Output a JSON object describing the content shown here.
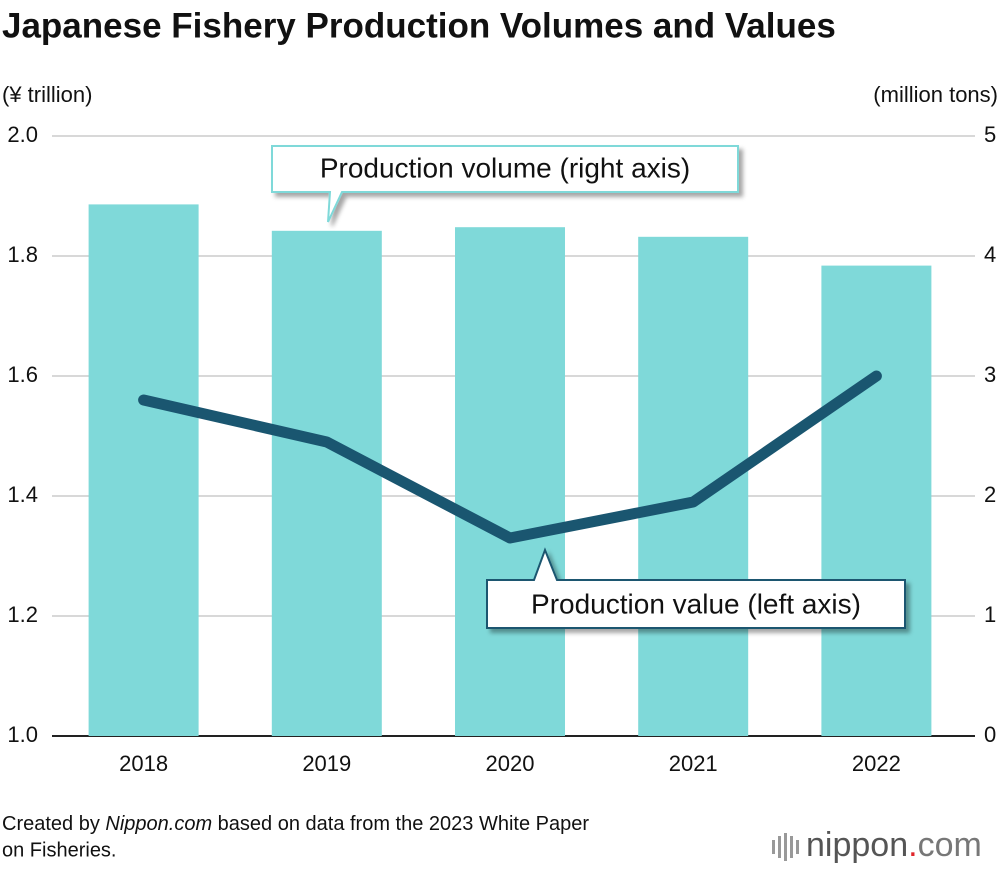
{
  "chart_data": {
    "type": "bar",
    "title": "Japanese Fishery Production Volumes and Values",
    "y_label": "(¥ trillion)",
    "y2_label": "(million tons)",
    "categories": [
      "2018",
      "2019",
      "2020",
      "2021",
      "2022"
    ],
    "series": [
      {
        "name": "Production volume (right axis)",
        "type": "bar",
        "axis": "y2",
        "color": "#7fd9d9",
        "values": [
          4.43,
          4.21,
          4.24,
          4.16,
          3.92
        ]
      },
      {
        "name": "Production value (left axis)",
        "type": "line",
        "axis": "y",
        "color": "#1a5670",
        "values": [
          1.56,
          1.49,
          1.33,
          1.39,
          1.6
        ]
      }
    ],
    "ylim": [
      1.0,
      2.0
    ],
    "yticks": [
      {
        "value": 1.0,
        "label": "1.0"
      },
      1.2,
      1.4,
      1.6,
      1.8,
      {
        "value": 2.0,
        "label": "2.0"
      }
    ],
    "y2lim": [
      0,
      5
    ],
    "y2ticks": [
      0,
      1,
      2,
      3,
      4,
      5
    ],
    "grid": true,
    "source": [
      "Created by ",
      "Nippon.com",
      " based on data from the 2023 White Paper",
      "on Fisheries."
    ],
    "logo": [
      "nippon",
      ".",
      "com"
    ]
  }
}
